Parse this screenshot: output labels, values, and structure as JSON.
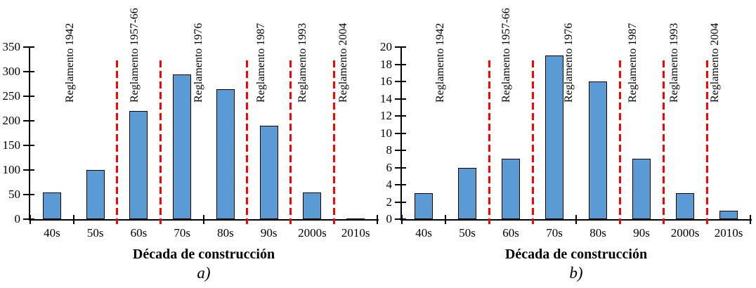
{
  "figure": {
    "background": "#ffffff",
    "text_color": "#000000"
  },
  "chart_data": [
    {
      "type": "bar",
      "panel": "a)",
      "xlabel": "Década de construcción",
      "ylabel": "",
      "categories": [
        "40s",
        "50s",
        "60s",
        "70s",
        "80s",
        "90s",
        "2000s",
        "2010s"
      ],
      "values": [
        55,
        100,
        220,
        295,
        265,
        190,
        55,
        2
      ],
      "ylim": [
        0,
        350
      ],
      "yticks": [
        0,
        50,
        100,
        150,
        200,
        250,
        300,
        350
      ],
      "grid": false,
      "legend": null,
      "bar_color": "#5B9BD5",
      "bar_border_color": "#000000",
      "divider_color": "#FF0000",
      "divider_boundaries": [
        2,
        3,
        5,
        6,
        7
      ],
      "annotations": [
        {
          "label": "Reglamento 1942",
          "x": 0.92
        },
        {
          "label": "Reglamento 1957-66",
          "x": 2.41
        },
        {
          "label": "Reglamento 1976",
          "x": 3.88
        },
        {
          "label": "Reglamento 1987",
          "x": 5.32
        },
        {
          "label": "Reglamento 1993",
          "x": 6.28
        },
        {
          "label": "Reglamento 2004",
          "x": 7.23
        }
      ]
    },
    {
      "type": "bar",
      "panel": "b)",
      "xlabel": "Década de construcción",
      "ylabel": "",
      "categories": [
        "40s",
        "50s",
        "60s",
        "70s",
        "80s",
        "90s",
        "2000s",
        "2010s"
      ],
      "values": [
        3,
        6,
        7,
        19,
        16,
        7,
        3,
        1
      ],
      "ylim": [
        0,
        20
      ],
      "yticks": [
        0,
        2,
        4,
        6,
        8,
        10,
        12,
        14,
        16,
        18,
        20
      ],
      "grid": false,
      "legend": null,
      "bar_color": "#5B9BD5",
      "bar_border_color": "#000000",
      "divider_color": "#FF0000",
      "divider_boundaries": [
        2,
        3,
        5,
        6,
        7
      ],
      "annotations": [
        {
          "label": "Reglamento 1942",
          "x": 0.88
        },
        {
          "label": "Reglamento 1957-66",
          "x": 2.41
        },
        {
          "label": "Reglamento 1976",
          "x": 3.84
        },
        {
          "label": "Reglamento 1987",
          "x": 5.31
        },
        {
          "label": "Reglamento 1993",
          "x": 6.26
        },
        {
          "label": "Reglamento 2004",
          "x": 7.2
        }
      ]
    }
  ]
}
